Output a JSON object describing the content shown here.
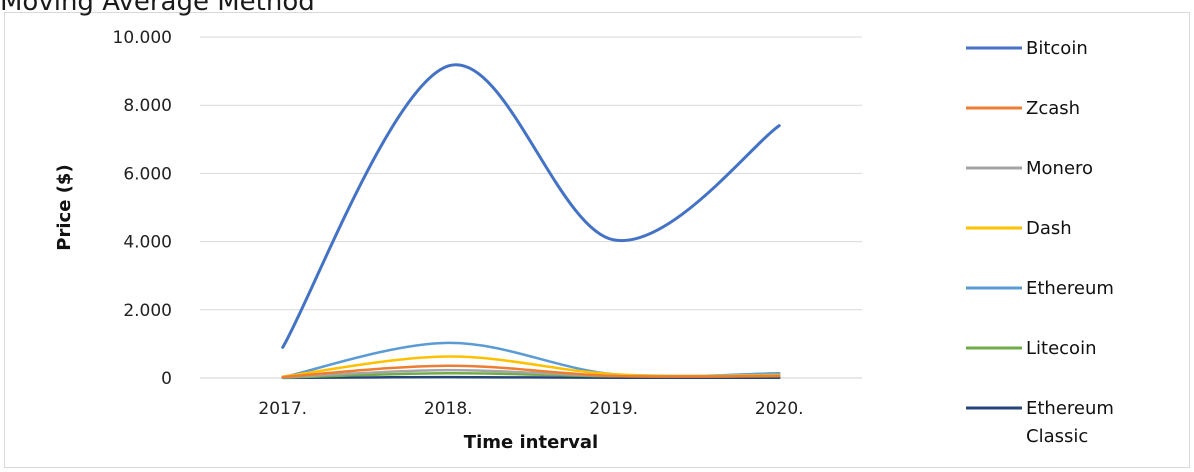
{
  "chart_data": {
    "type": "line",
    "title": "Moving Average Method",
    "xlabel": "Time interval",
    "ylabel": "Price ($)",
    "categories": [
      "2017.",
      "2018.",
      "2019.",
      "2020."
    ],
    "ylim": [
      0,
      10000
    ],
    "yticks": [
      0,
      2000,
      4000,
      6000,
      8000,
      10000
    ],
    "ytick_labels": [
      "0",
      "2.000",
      "4.000",
      "6.000",
      "8.000",
      "10.000"
    ],
    "grid": true,
    "legend_position": "right",
    "series": [
      {
        "name": "Bitcoin",
        "color": "#4472c4",
        "values": [
          900,
          9150,
          4050,
          7400
        ]
      },
      {
        "name": "Zcash",
        "color": "#ed7d31",
        "values": [
          30,
          360,
          60,
          60
        ]
      },
      {
        "name": "Monero",
        "color": "#a5a5a5",
        "values": [
          20,
          230,
          60,
          70
        ]
      },
      {
        "name": "Dash",
        "color": "#ffc000",
        "values": [
          40,
          630,
          110,
          90
        ]
      },
      {
        "name": "Ethereum",
        "color": "#5b9bd5",
        "values": [
          20,
          1030,
          110,
          140
        ]
      },
      {
        "name": "Litecoin",
        "color": "#70ad47",
        "values": [
          10,
          140,
          50,
          50
        ]
      },
      {
        "name": "Ethereum Classic",
        "legend_lines": [
          "Ethereum",
          "Classic"
        ],
        "color": "#264478",
        "values": [
          5,
          25,
          8,
          8
        ]
      }
    ]
  }
}
